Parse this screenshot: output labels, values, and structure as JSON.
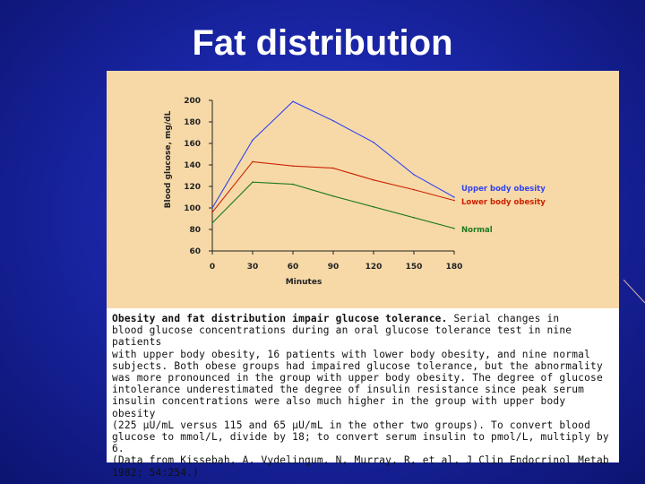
{
  "slide": {
    "title": "Fat distribution"
  },
  "chart_data": {
    "type": "line",
    "title": "",
    "xlabel": "Minutes",
    "ylabel": "Blood glucose, mg/dL",
    "x": [
      0,
      30,
      60,
      90,
      120,
      150,
      180
    ],
    "xticks": [
      "0",
      "30",
      "60",
      "90",
      "120",
      "150",
      "180"
    ],
    "yticks": [
      "60",
      "80",
      "100",
      "120",
      "140",
      "160",
      "180",
      "200"
    ],
    "xlim": [
      0,
      180
    ],
    "ylim": [
      60,
      200
    ],
    "series": [
      {
        "name": "Upper body obesity",
        "color": "#3344ee",
        "values": [
          100,
          163,
          199,
          181,
          161,
          131,
          110
        ]
      },
      {
        "name": "Lower body obesity",
        "color": "#cc2200",
        "values": [
          96,
          143,
          139,
          137,
          126,
          117,
          107
        ]
      },
      {
        "name": "Normal",
        "color": "#1f7a1f",
        "values": [
          86,
          124,
          122,
          111,
          101,
          91,
          81
        ]
      }
    ]
  },
  "caption": {
    "lead": "Obesity and fat distribution impair glucose tolerance.",
    "lines": [
      "blood glucose concentrations during an oral glucose tolerance test in nine patients",
      "with upper body obesity, 16 patients with lower body obesity, and nine normal",
      "subjects. Both obese groups had impaired glucose tolerance, but the abnormality",
      "was more pronounced in the group with upper body obesity. The degree of glucose",
      "intolerance underestimated the degree of insulin resistance since peak serum",
      "insulin concentrations were also much higher in the group with upper body obesity",
      "(225 μU/mL versus 115 and 65 μU/mL in the other two groups). To convert blood",
      "glucose to mmol/L, divide by 18; to convert serum insulin to pmol/L, multiply by 6.",
      "(Data from Kissebah, A, Vydelingum, N, Murray, R, et al, J Clin Endocrinol Metab",
      "1982; 54:254.)"
    ],
    "first_line_rest": " Serial changes in"
  }
}
